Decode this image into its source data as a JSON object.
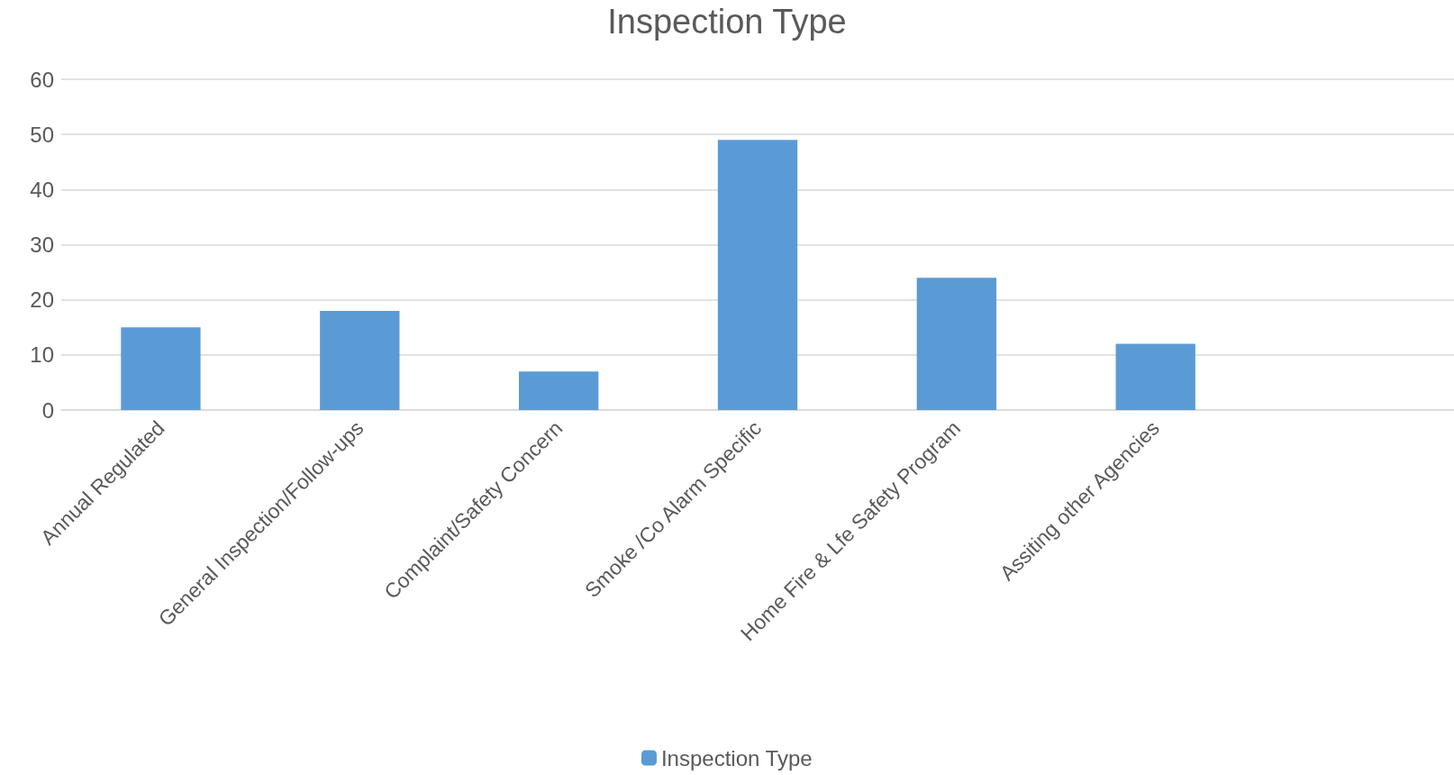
{
  "chart_data": {
    "type": "bar",
    "title": "Inspection Type",
    "categories": [
      "Annual Regulated",
      "General Inspection/Follow-ups",
      "Complaint/Safety Concern",
      "Smoke /Co Alarm Specific",
      "Home Fire & Lfe Safety Program",
      "Assiting other Agencies",
      null
    ],
    "series": [
      {
        "name": "Inspection Type",
        "color": "#5b9bd5",
        "values": [
          15,
          18,
          7,
          49,
          24,
          12,
          null
        ]
      }
    ],
    "ylim": [
      0,
      60
    ],
    "yticks": [
      0,
      10,
      20,
      30,
      40,
      50,
      60
    ],
    "grid": "y",
    "legend": "bottom"
  }
}
